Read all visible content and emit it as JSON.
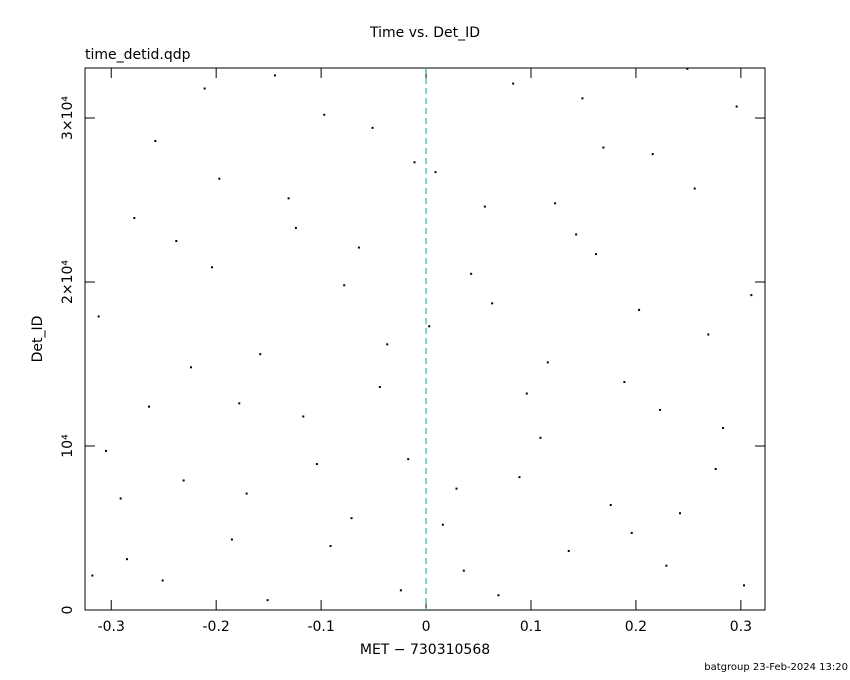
{
  "chart_data": {
    "type": "scatter",
    "title": "Time vs. Det_ID",
    "subtitle": "time_detid.qdp",
    "xlabel": "MET − 730310568",
    "ylabel": "Det_ID",
    "footer": "batgroup 23-Feb-2024 13:20",
    "color": "#000000",
    "vline": {
      "x": 0,
      "color": "#1a9fb0"
    },
    "xlim": [
      -0.325,
      0.323
    ],
    "ylim": [
      0,
      33050
    ],
    "xticks": [
      -0.3,
      -0.2,
      -0.1,
      0,
      0.1,
      0.2,
      0.3
    ],
    "yticks": [
      0,
      {
        "value": 10000,
        "label": "10⁴"
      },
      {
        "value": 20000,
        "label": "2×10⁴"
      },
      {
        "value": 30000,
        "label": "3×10⁴"
      }
    ],
    "x": [
      -0.318,
      -0.291,
      -0.264,
      -0.238,
      -0.211,
      -0.185,
      -0.158,
      -0.131,
      -0.104,
      -0.078,
      -0.051,
      -0.024,
      0.003,
      0.029,
      0.056,
      0.083,
      0.109,
      0.136,
      0.162,
      0.189,
      0.216,
      0.242,
      0.269,
      0.296,
      -0.305,
      -0.278,
      -0.251,
      -0.224,
      -0.197,
      -0.171,
      -0.144,
      -0.117,
      -0.091,
      -0.064,
      -0.037,
      -0.011,
      0.016,
      0.043,
      0.069,
      0.096,
      0.123,
      0.149,
      0.176,
      0.203,
      0.229,
      0.256,
      0.283,
      0.31,
      -0.312,
      -0.285,
      -0.258,
      -0.231,
      -0.204,
      -0.178,
      -0.151,
      -0.124,
      -0.097,
      -0.071,
      -0.044,
      -0.017,
      0.009,
      0.036,
      0.063,
      0.089,
      0.116,
      0.143,
      0.169,
      0.196,
      0.223,
      0.249,
      0.276,
      0.303
    ],
    "values": [
      2100,
      6800,
      12400,
      22500,
      31800,
      4300,
      15600,
      25100,
      8900,
      19800,
      29400,
      1200,
      17300,
      7400,
      24600,
      32100,
      10500,
      3600,
      21700,
      13900,
      27800,
      5900,
      16800,
      30700,
      9700,
      23900,
      1800,
      14800,
      26300,
      7100,
      32600,
      11800,
      3900,
      22100,
      16200,
      27300,
      5200,
      20500,
      900,
      13200,
      24800,
      31200,
      6400,
      18300,
      2700,
      25700,
      11100,
      19200,
      17900,
      3100,
      28600,
      7900,
      20900,
      12600,
      600,
      23300,
      30200,
      5600,
      13600,
      9200,
      26700,
      2400,
      18700,
      8100,
      15100,
      22900,
      28200,
      4700,
      12200,
      33000,
      8600,
      1500
    ]
  }
}
